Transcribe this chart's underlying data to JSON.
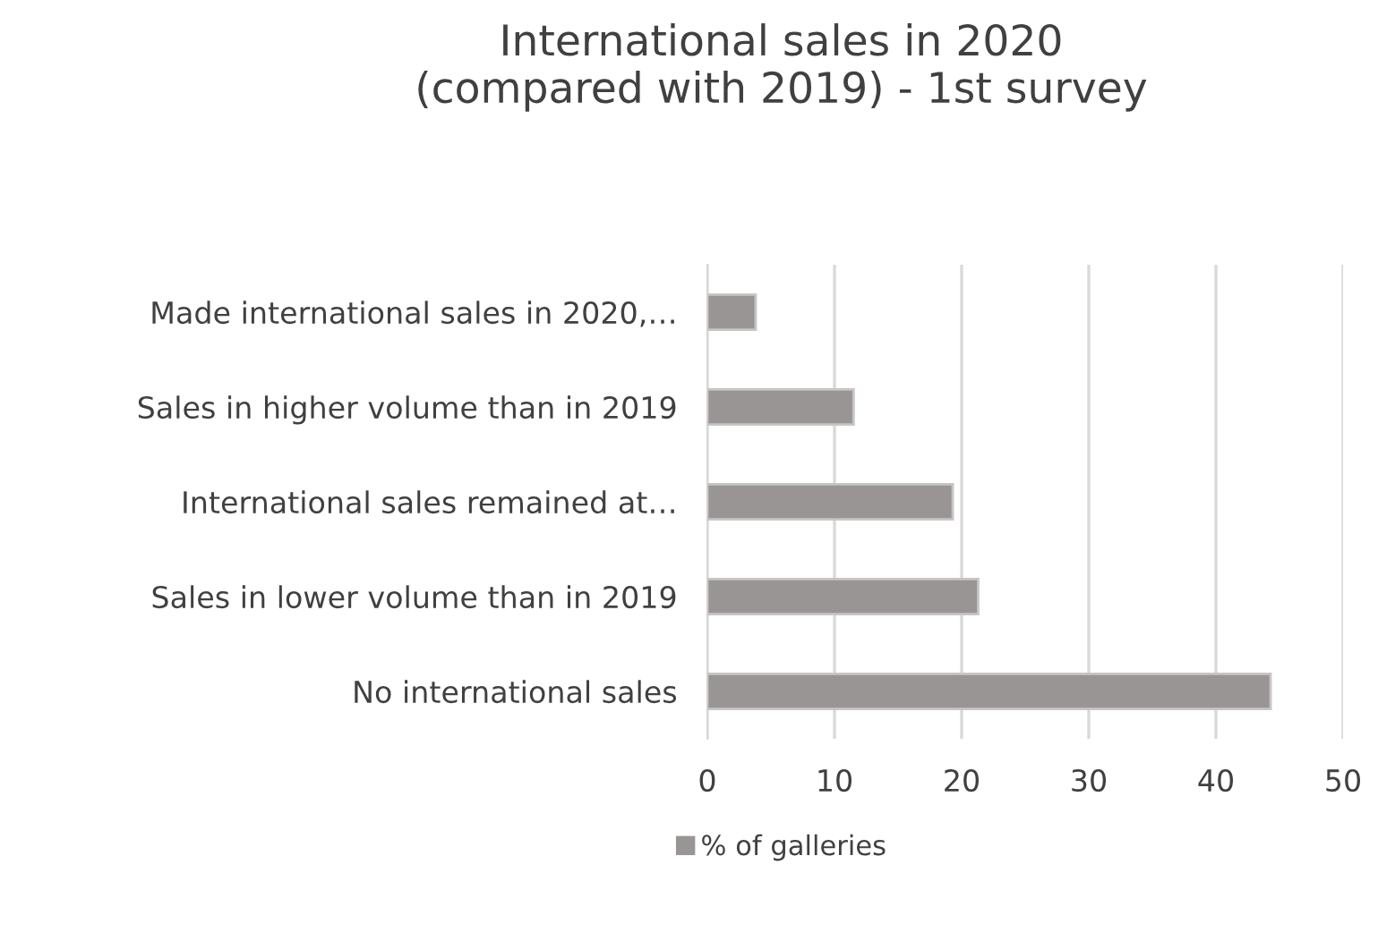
{
  "chart_data": {
    "type": "bar",
    "orientation": "horizontal",
    "title": "International sales in 2020\n(compared with 2019) - 1st survey",
    "categories": [
      "Made international sales in 2020,…",
      "Sales in higher volume than in 2019",
      "International sales remained at…",
      "Sales in lower volume than in 2019",
      "No international sales"
    ],
    "series": [
      {
        "name": "% of galleries",
        "color": "#989594",
        "values": [
          3.8,
          11.5,
          19.3,
          21.3,
          44.3
        ]
      }
    ],
    "xlim": [
      0,
      50
    ],
    "xticks": [
      0,
      10,
      20,
      30,
      40,
      50
    ],
    "grid": "x",
    "legend": "bottom"
  }
}
